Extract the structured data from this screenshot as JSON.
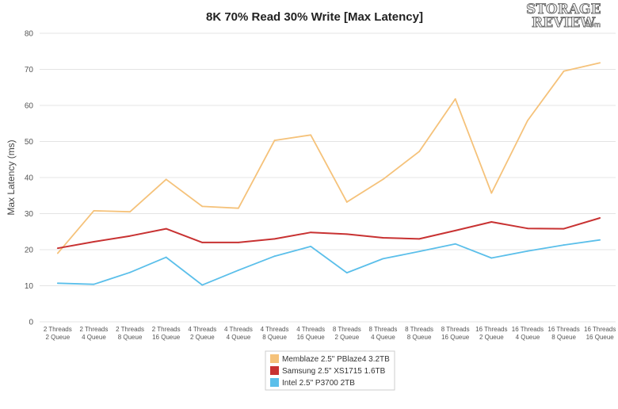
{
  "logo": {
    "top": "STORAGE",
    "bottom": "REVIEW",
    "suffix": ".com"
  },
  "chart_data": {
    "type": "line",
    "title": "8K 70% Read 30% Write [Max Latency]",
    "xlabel": "",
    "ylabel": "Max Latency (ms)",
    "ylim": [
      0,
      80
    ],
    "yticks": [
      0,
      10,
      20,
      30,
      40,
      50,
      60,
      70,
      80
    ],
    "grid": true,
    "legend_position": "bottom-center",
    "categories": [
      [
        "2 Threads",
        "2 Queue"
      ],
      [
        "2 Threads",
        "4 Queue"
      ],
      [
        "2 Threads",
        "8 Queue"
      ],
      [
        "2 Threads",
        "16 Queue"
      ],
      [
        "4 Threads",
        "2 Queue"
      ],
      [
        "4 Threads",
        "4 Queue"
      ],
      [
        "4 Threads",
        "8 Queue"
      ],
      [
        "4 Threads",
        "16 Queue"
      ],
      [
        "8 Threads",
        "2 Queue"
      ],
      [
        "8 Threads",
        "4 Queue"
      ],
      [
        "8 Threads",
        "8 Queue"
      ],
      [
        "8 Threads",
        "16 Queue"
      ],
      [
        "16 Threads",
        "2 Queue"
      ],
      [
        "16 Threads",
        "4 Queue"
      ],
      [
        "16 Threads",
        "8 Queue"
      ],
      [
        "16 Threads",
        "16 Queue"
      ]
    ],
    "series": [
      {
        "name": "Memblaze 2.5\" PBlaze4 3.2TB",
        "color": "#f5c27a",
        "values": [
          19,
          30.8,
          30.5,
          39.5,
          32,
          31.5,
          50.3,
          51.8,
          33.2,
          39.5,
          47.2,
          61.8,
          35.7,
          55.8,
          69.5,
          71.8
        ]
      },
      {
        "name": "Samsung 2.5\" XS1715 1.6TB",
        "color": "#c83232",
        "values": [
          20.4,
          22.2,
          23.8,
          25.8,
          22,
          22,
          23,
          24.8,
          24.3,
          23.3,
          23,
          25.3,
          27.7,
          25.9,
          25.8,
          28.8
        ]
      },
      {
        "name": "Intel 2.5\" P3700 2TB",
        "color": "#5bbfea",
        "values": [
          10.7,
          10.4,
          13.7,
          17.9,
          10.2,
          14.3,
          18.2,
          20.9,
          13.6,
          17.5,
          19.5,
          21.6,
          17.7,
          19.6,
          21.3,
          22.7
        ]
      }
    ]
  }
}
